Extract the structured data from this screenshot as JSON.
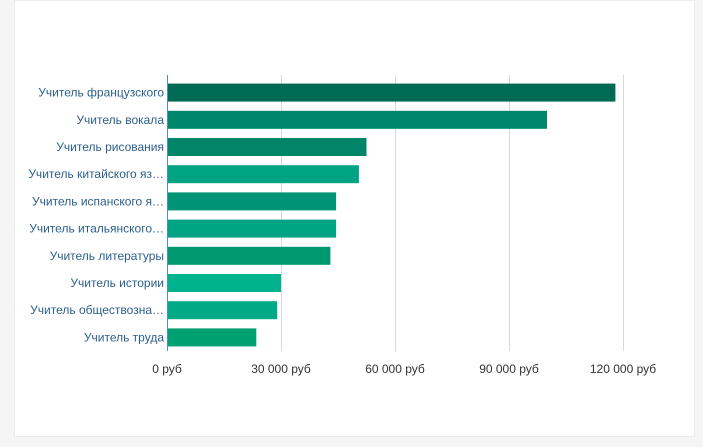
{
  "chart_data": {
    "type": "bar",
    "orientation": "horizontal",
    "categories": [
      "Учитель французского",
      "Учитель вокала",
      "Учитель рисования",
      "Учитель китайского яз…",
      "Учитель испанского я…",
      "Учитель итальянского…",
      "Учитель литературы",
      "Учитель истории",
      "Учитель обществозна…",
      "Учитель труда"
    ],
    "values": [
      118000,
      100000,
      52500,
      50500,
      44500,
      44500,
      43000,
      30000,
      29000,
      23500
    ],
    "xlim": [
      0,
      120000
    ],
    "ticks": [
      0,
      30000,
      60000,
      90000,
      120000
    ],
    "tick_labels": [
      "0 руб",
      "30 000 руб",
      "60 000 руб",
      "90 000 руб",
      "120 000 руб"
    ],
    "title": "",
    "xlabel": "",
    "ylabel": "",
    "grid": true,
    "colors": {
      "bars": [
        "#006b54",
        "#00866a",
        "#008568",
        "#00a382",
        "#009476",
        "#00a383",
        "#00996f",
        "#00b38e",
        "#00aa86",
        "#00a070"
      ],
      "grid": "#d9d9d9",
      "axis": "#4a90c8",
      "category_text": "#2c5f8a",
      "tick_text": "#333333"
    }
  }
}
